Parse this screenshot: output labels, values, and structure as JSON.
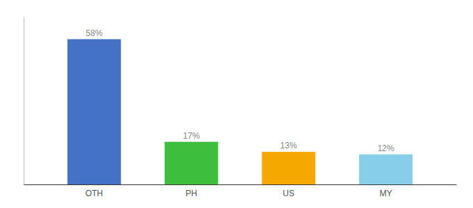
{
  "chart_data": {
    "type": "bar",
    "categories": [
      "OTH",
      "PH",
      "US",
      "MY"
    ],
    "values": [
      58,
      17,
      13,
      12
    ],
    "value_labels": [
      "58%",
      "17%",
      "13%",
      "12%"
    ],
    "colors": [
      "#4472C4",
      "#3DBF3D",
      "#F5A800",
      "#87CEEB"
    ],
    "ylim": [
      0,
      67
    ],
    "data_labels": true,
    "tick_labels": "x"
  }
}
